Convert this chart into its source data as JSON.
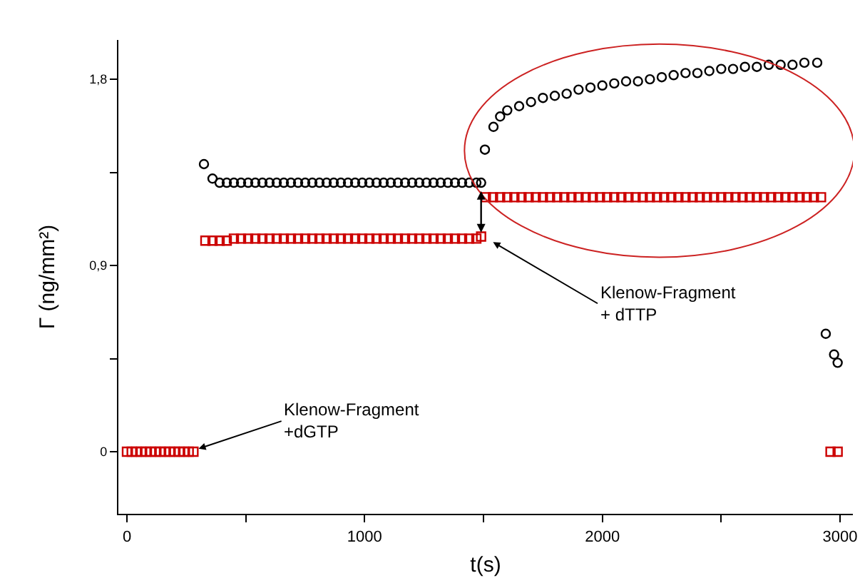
{
  "chart_data": {
    "type": "scatter",
    "xlabel": "t(s)",
    "ylabel": "Γ (ng/mm²)",
    "xlim": [
      -36,
      3054
    ],
    "ylim": [
      -0.3,
      1.99
    ],
    "xticks": [
      0,
      {
        "value": 500,
        "label": null
      },
      1000,
      {
        "value": 1500,
        "label": null
      },
      2000,
      {
        "value": 2500,
        "label": null
      },
      3000
    ],
    "yticks": [
      0,
      {
        "value": 0.45,
        "label": null
      },
      {
        "value": 0.9,
        "label": "0,9"
      },
      {
        "value": 1.35,
        "label": null
      },
      {
        "value": 1.8,
        "label": "1,8"
      }
    ],
    "series": [
      {
        "color": "#000000",
        "marker": "circle",
        "x": [
          324,
          360,
          390,
          420,
          450,
          480,
          510,
          540,
          570,
          600,
          630,
          660,
          690,
          720,
          750,
          780,
          810,
          840,
          870,
          900,
          930,
          960,
          990,
          1020,
          1050,
          1080,
          1110,
          1140,
          1170,
          1200,
          1230,
          1260,
          1290,
          1320,
          1350,
          1380,
          1410,
          1440,
          1470,
          1490,
          1506,
          1542,
          1570,
          1600,
          1650,
          1700,
          1750,
          1800,
          1850,
          1900,
          1950,
          2000,
          2050,
          2100,
          2150,
          2200,
          2250,
          2300,
          2350,
          2400,
          2450,
          2500,
          2550,
          2600,
          2650,
          2700,
          2750,
          2800,
          2850,
          2904,
          2940,
          2975,
          2990
        ],
        "values": [
          1.39,
          1.32,
          1.3,
          1.3,
          1.3,
          1.3,
          1.3,
          1.3,
          1.3,
          1.3,
          1.3,
          1.3,
          1.3,
          1.3,
          1.3,
          1.3,
          1.3,
          1.3,
          1.3,
          1.3,
          1.3,
          1.3,
          1.3,
          1.3,
          1.3,
          1.3,
          1.3,
          1.3,
          1.3,
          1.3,
          1.3,
          1.3,
          1.3,
          1.3,
          1.3,
          1.3,
          1.3,
          1.3,
          1.3,
          1.3,
          1.46,
          1.57,
          1.62,
          1.65,
          1.67,
          1.69,
          1.71,
          1.72,
          1.73,
          1.75,
          1.76,
          1.77,
          1.78,
          1.79,
          1.79,
          1.8,
          1.81,
          1.82,
          1.83,
          1.83,
          1.84,
          1.85,
          1.85,
          1.86,
          1.86,
          1.87,
          1.87,
          1.87,
          1.88,
          1.88,
          0.57,
          0.47,
          0.43
        ]
      },
      {
        "color": "#cc0000",
        "marker": "square",
        "x": [
          0,
          20,
          40,
          60,
          80,
          100,
          120,
          140,
          160,
          180,
          200,
          220,
          240,
          260,
          280,
          330,
          360,
          390,
          420,
          450,
          480,
          510,
          540,
          570,
          600,
          630,
          660,
          690,
          720,
          750,
          780,
          810,
          840,
          870,
          900,
          930,
          960,
          990,
          1020,
          1050,
          1080,
          1110,
          1140,
          1170,
          1200,
          1230,
          1260,
          1290,
          1320,
          1350,
          1380,
          1410,
          1440,
          1470,
          1490,
          1510,
          1540,
          1570,
          1600,
          1630,
          1660,
          1690,
          1720,
          1750,
          1780,
          1810,
          1840,
          1870,
          1900,
          1930,
          1960,
          1990,
          2020,
          2050,
          2080,
          2110,
          2140,
          2170,
          2200,
          2230,
          2260,
          2290,
          2320,
          2350,
          2380,
          2410,
          2440,
          2470,
          2500,
          2530,
          2560,
          2590,
          2620,
          2650,
          2680,
          2710,
          2740,
          2770,
          2800,
          2830,
          2860,
          2890,
          2920,
          2960,
          2990
        ],
        "values": [
          0,
          0,
          0,
          0,
          0,
          0,
          0,
          0,
          0,
          0,
          0,
          0,
          0,
          0,
          0,
          1.02,
          1.02,
          1.02,
          1.02,
          1.03,
          1.03,
          1.03,
          1.03,
          1.03,
          1.03,
          1.03,
          1.03,
          1.03,
          1.03,
          1.03,
          1.03,
          1.03,
          1.03,
          1.03,
          1.03,
          1.03,
          1.03,
          1.03,
          1.03,
          1.03,
          1.03,
          1.03,
          1.03,
          1.03,
          1.03,
          1.03,
          1.03,
          1.03,
          1.03,
          1.03,
          1.03,
          1.03,
          1.03,
          1.03,
          1.04,
          1.23,
          1.23,
          1.23,
          1.23,
          1.23,
          1.23,
          1.23,
          1.23,
          1.23,
          1.23,
          1.23,
          1.23,
          1.23,
          1.23,
          1.23,
          1.23,
          1.23,
          1.23,
          1.23,
          1.23,
          1.23,
          1.23,
          1.23,
          1.23,
          1.23,
          1.23,
          1.23,
          1.23,
          1.23,
          1.23,
          1.23,
          1.23,
          1.23,
          1.23,
          1.23,
          1.23,
          1.23,
          1.23,
          1.23,
          1.23,
          1.23,
          1.23,
          1.23,
          1.23,
          1.23,
          1.23,
          1.23,
          1.23,
          0,
          0
        ]
      }
    ],
    "annotations": [
      {
        "text": "Klenow-Fragment\n+dGTP",
        "x": 290,
        "y": 0.01
      },
      {
        "text": "Klenow-Fragment\n+ dTTP",
        "x": 1530,
        "y": 1.02
      }
    ]
  }
}
